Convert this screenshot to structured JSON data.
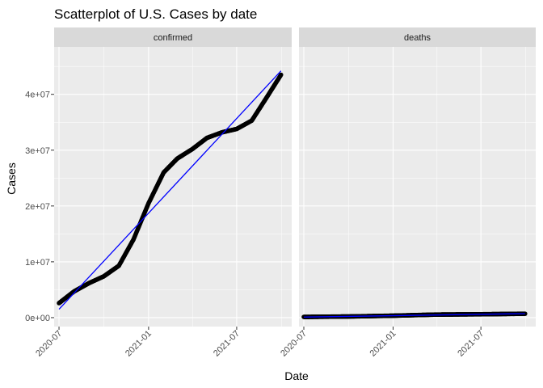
{
  "chart_data": {
    "type": "scatter",
    "title": "Scatterplot of U.S. Cases by date",
    "xlabel": "Date",
    "ylabel": "Cases",
    "facets": [
      "confirmed",
      "deaths"
    ],
    "x_ticks": [
      "2020-07",
      "2021-01",
      "2021-07"
    ],
    "y_ticks": [
      "0e+00",
      "1e+07",
      "2e+07",
      "3e+07",
      "4e+07"
    ],
    "y_tick_values": [
      0,
      10000000,
      20000000,
      30000000,
      40000000
    ],
    "xlim": [
      "2020-06-21",
      "2021-10-22"
    ],
    "ylim": [
      -1600000,
      48500000
    ],
    "grid": true,
    "point_color": "#000000",
    "fit_color": "#0000ff",
    "series": [
      {
        "facet": "confirmed",
        "points": [
          {
            "x": "2020-07-01",
            "y": 2600000
          },
          {
            "x": "2020-08-01",
            "y": 4700000
          },
          {
            "x": "2020-09-01",
            "y": 6200000
          },
          {
            "x": "2020-10-01",
            "y": 7400000
          },
          {
            "x": "2020-11-01",
            "y": 9300000
          },
          {
            "x": "2020-12-01",
            "y": 14000000
          },
          {
            "x": "2021-01-01",
            "y": 20500000
          },
          {
            "x": "2021-02-01",
            "y": 26000000
          },
          {
            "x": "2021-03-01",
            "y": 28500000
          },
          {
            "x": "2021-04-01",
            "y": 30200000
          },
          {
            "x": "2021-05-01",
            "y": 32200000
          },
          {
            "x": "2021-06-01",
            "y": 33200000
          },
          {
            "x": "2021-07-01",
            "y": 33800000
          },
          {
            "x": "2021-08-01",
            "y": 35300000
          },
          {
            "x": "2021-09-01",
            "y": 39500000
          },
          {
            "x": "2021-09-30",
            "y": 43500000
          }
        ],
        "fit": [
          {
            "x": "2020-07-01",
            "y": 1500000
          },
          {
            "x": "2021-09-30",
            "y": 44200000
          }
        ]
      },
      {
        "facet": "deaths",
        "points": [
          {
            "x": "2020-07-01",
            "y": 127000
          },
          {
            "x": "2020-10-01",
            "y": 207000
          },
          {
            "x": "2021-01-01",
            "y": 350000
          },
          {
            "x": "2021-04-01",
            "y": 550000
          },
          {
            "x": "2021-07-01",
            "y": 605000
          },
          {
            "x": "2021-09-30",
            "y": 700000
          }
        ],
        "fit": [
          {
            "x": "2020-07-01",
            "y": 100000
          },
          {
            "x": "2021-09-30",
            "y": 720000
          }
        ]
      }
    ]
  }
}
